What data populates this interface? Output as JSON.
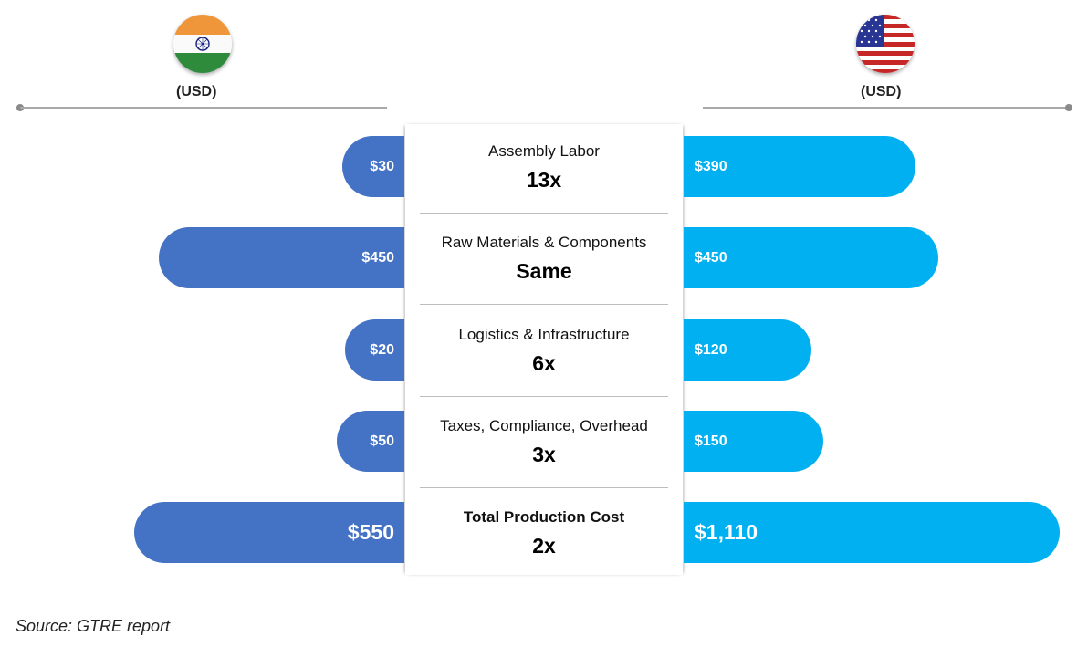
{
  "left": {
    "unit_label": "(USD)",
    "flag_icon": "india-flag-icon"
  },
  "right": {
    "unit_label": "(USD)",
    "flag_icon": "usa-flag-icon"
  },
  "colors": {
    "india": "#4472c4",
    "usa": "#00b0f0"
  },
  "source": "Source: GTRE report",
  "chart_data": {
    "type": "bar",
    "orientation": "horizontal-butterfly",
    "categories": [
      "Assembly Labor",
      "Raw Materials & Components",
      "Logistics & Infrastructure",
      "Taxes, Compliance, Overhead",
      "Total Production Cost"
    ],
    "ratios": [
      "13x",
      "Same",
      "6x",
      "3x",
      "2x"
    ],
    "series": [
      {
        "values": [
          30,
          450,
          20,
          50,
          550
        ],
        "labels": [
          "$30",
          "$450",
          "$20",
          "$50",
          "$550"
        ],
        "color": "#4472c4"
      },
      {
        "values": [
          390,
          450,
          120,
          150,
          1110
        ],
        "labels": [
          "$390",
          "$450",
          "$120",
          "$150",
          "$1,110"
        ],
        "color": "#00b0f0"
      }
    ]
  }
}
